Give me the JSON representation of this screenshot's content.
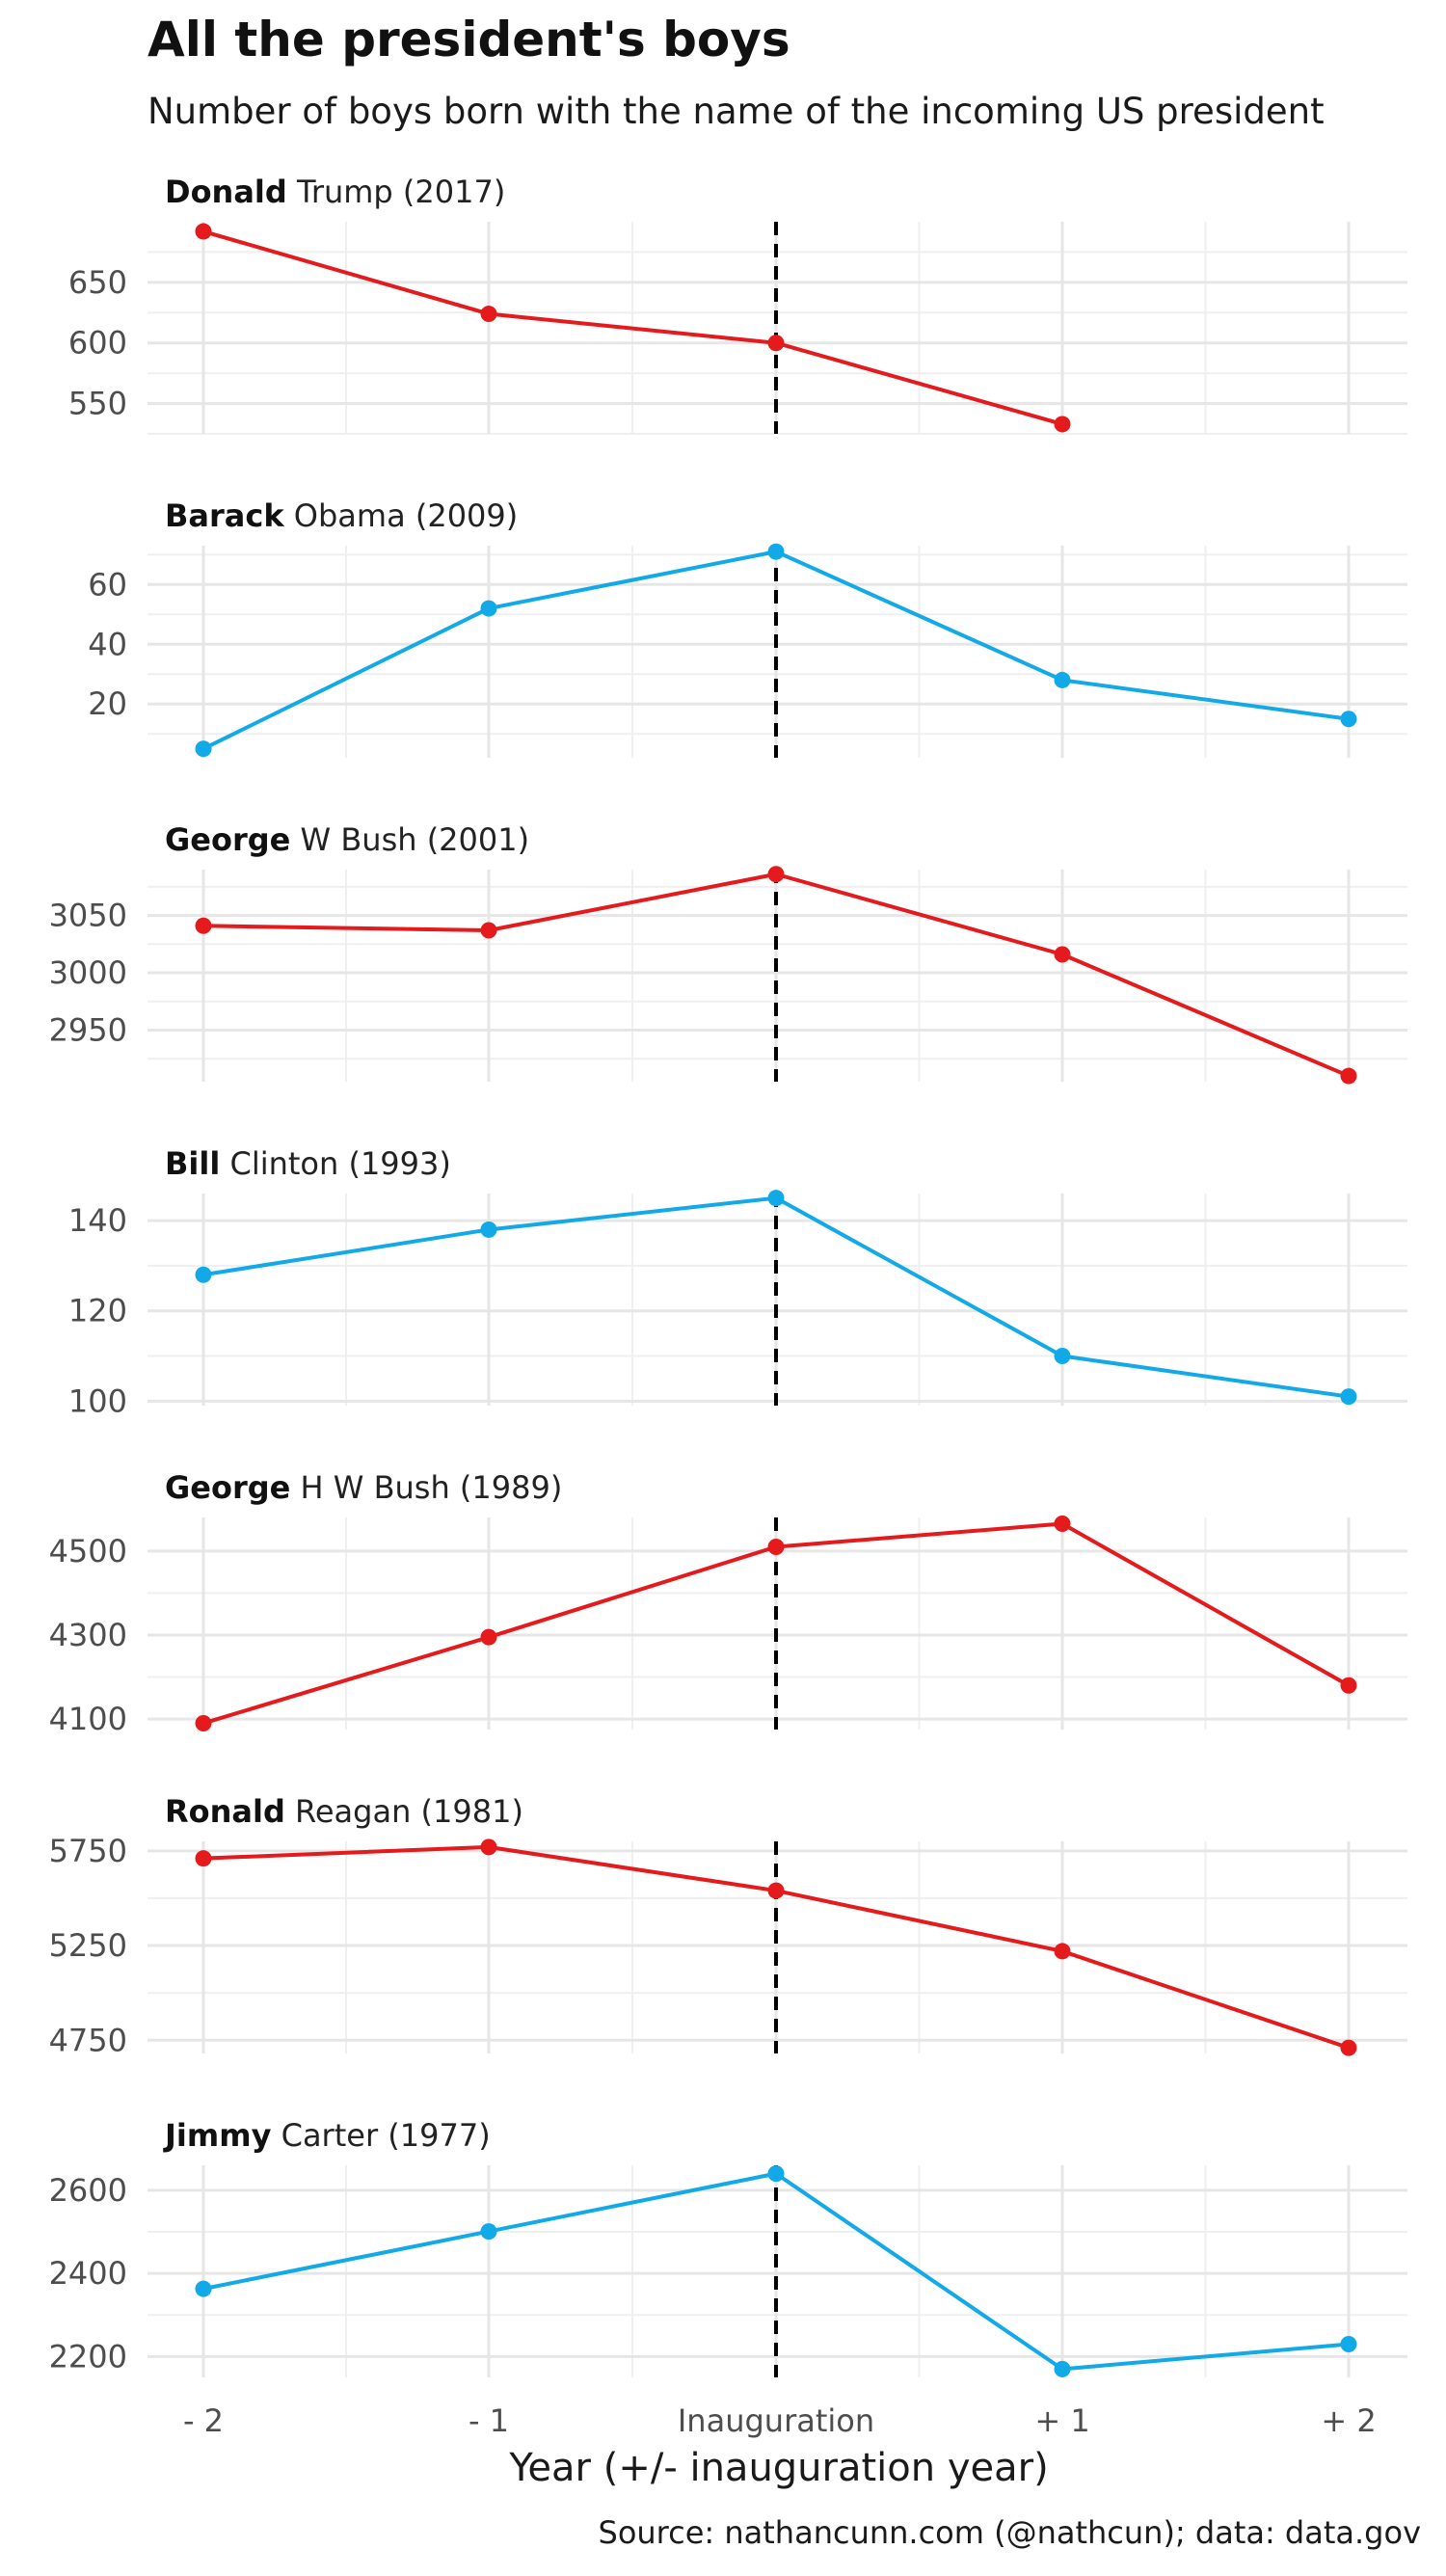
{
  "chart_data": {
    "type": "line",
    "title": "All the president's boys",
    "subtitle": "Number of boys born with the name of the incoming US president",
    "xlabel": "Year (+/- inauguration year)",
    "caption": "Source: nathancunn.com (@nathcun); data: data.gov",
    "categories": [
      "- 2",
      "- 1",
      "Inauguration",
      "+ 1",
      "+ 2"
    ],
    "x": [
      -2,
      -1,
      0,
      1,
      2
    ],
    "reference_line": {
      "x": 0,
      "style": "dashed",
      "color": "#000000"
    },
    "colors": {
      "red": "#e41a1c",
      "blue": "#12a9e9"
    },
    "panels": [
      {
        "first_name": "Donald",
        "rest": "Trump (2017)",
        "color": "#e41a1c",
        "values": [
          692,
          624,
          600,
          533,
          null
        ],
        "ylim": [
          525,
          700
        ],
        "yticks": [
          550,
          600,
          650
        ]
      },
      {
        "first_name": "Barack",
        "rest": "Obama (2009)",
        "color": "#12a9e9",
        "values": [
          5,
          52,
          71,
          28,
          15
        ],
        "ylim": [
          2,
          73
        ],
        "yticks": [
          20,
          40,
          60
        ]
      },
      {
        "first_name": "George",
        "rest": "W Bush (2001)",
        "color": "#e41a1c",
        "values": [
          3041,
          3037,
          3086,
          3016,
          2910
        ],
        "ylim": [
          2905,
          3090
        ],
        "yticks": [
          2950,
          3000,
          3050
        ]
      },
      {
        "first_name": "Bill",
        "rest": "Clinton (1993)",
        "color": "#12a9e9",
        "values": [
          128,
          138,
          145,
          110,
          101
        ],
        "ylim": [
          99,
          146
        ],
        "yticks": [
          100,
          120,
          140
        ]
      },
      {
        "first_name": "George",
        "rest": "H W Bush (1989)",
        "color": "#e41a1c",
        "values": [
          4090,
          4295,
          4510,
          4565,
          4180
        ],
        "ylim": [
          4075,
          4580
        ],
        "yticks": [
          4100,
          4300,
          4500
        ]
      },
      {
        "first_name": "Ronald",
        "rest": "Reagan (1981)",
        "color": "#e41a1c",
        "values": [
          5710,
          5770,
          5540,
          5220,
          4710
        ],
        "ylim": [
          4680,
          5800
        ],
        "yticks": [
          4750,
          5250,
          5750
        ]
      },
      {
        "first_name": "Jimmy",
        "rest": "Carter (1977)",
        "color": "#12a9e9",
        "values": [
          2363,
          2501,
          2640,
          2170,
          2230
        ],
        "ylim": [
          2150,
          2660
        ],
        "yticks": [
          2200,
          2400,
          2600
        ]
      }
    ]
  }
}
